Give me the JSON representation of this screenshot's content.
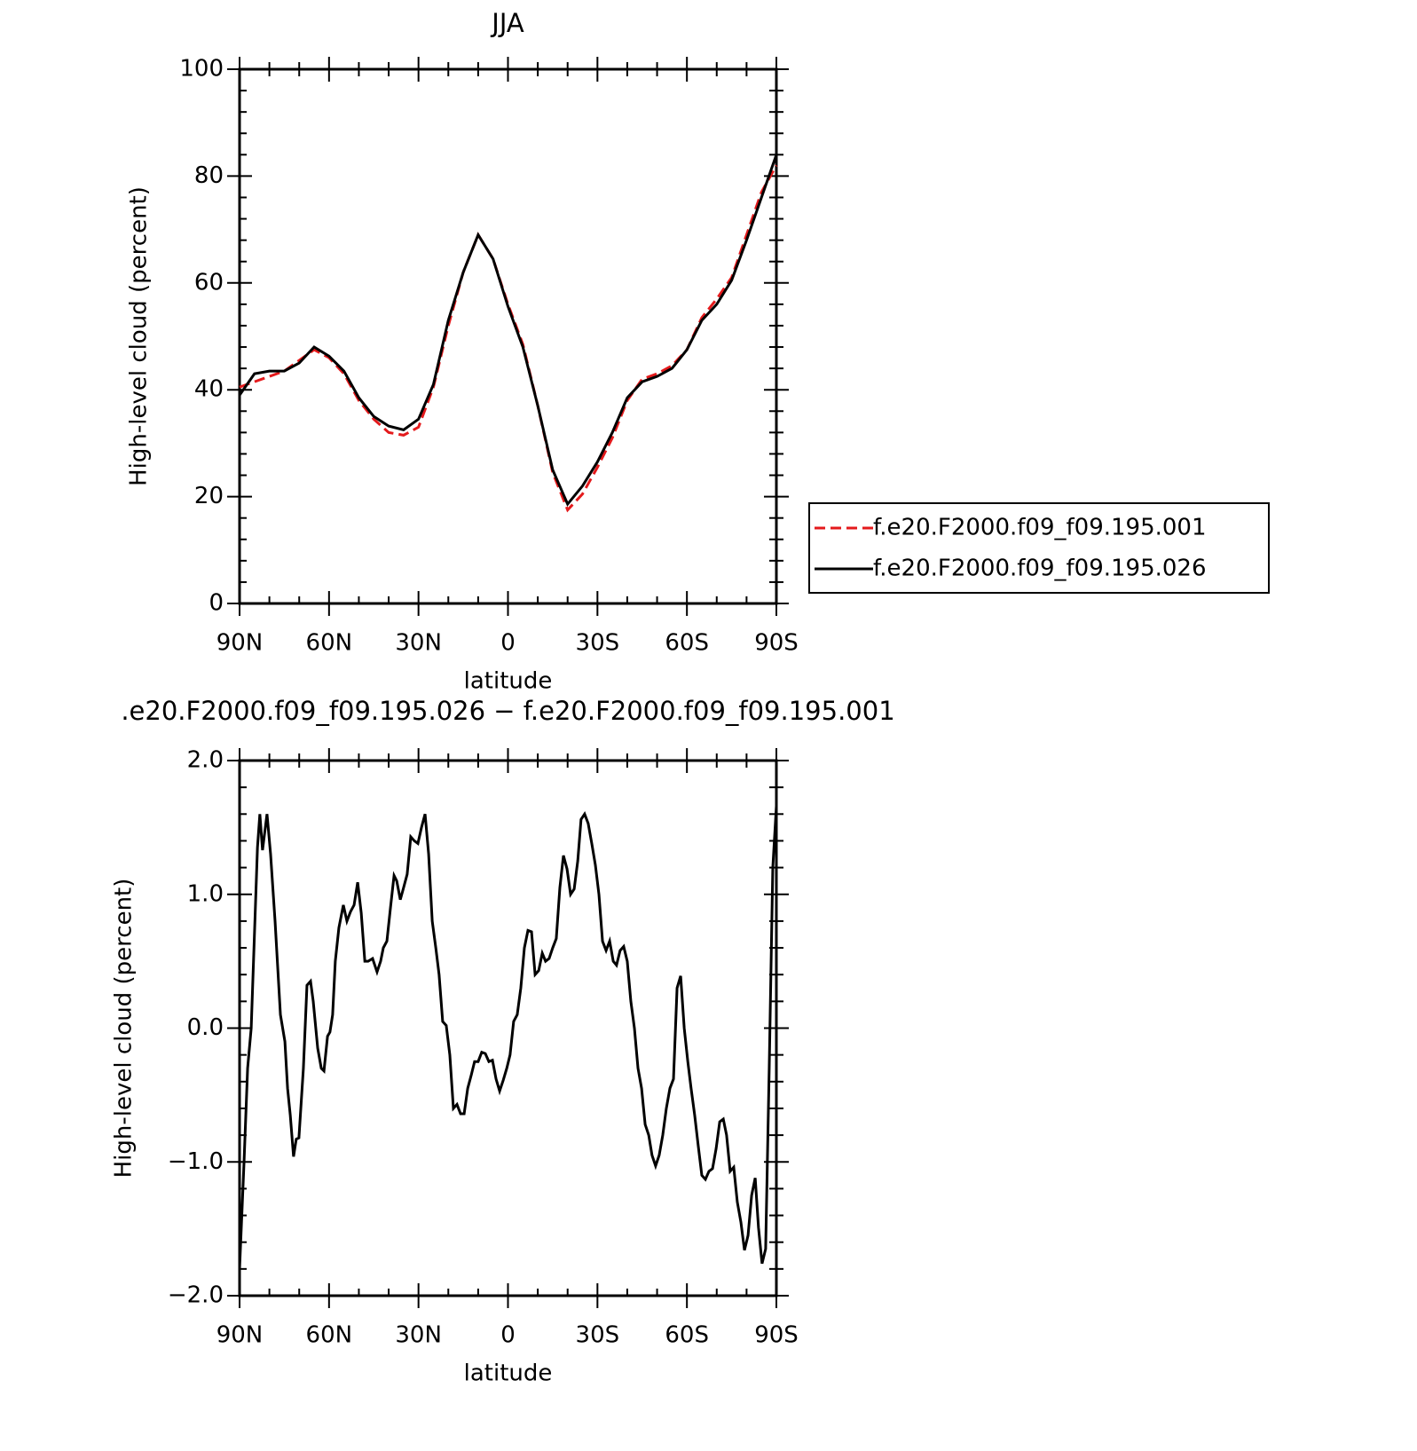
{
  "chart_data": [
    {
      "type": "line",
      "title": "JJA",
      "xlabel": "latitude",
      "ylabel": "High-level cloud (percent)",
      "x": [
        90,
        85,
        80,
        75,
        70,
        65,
        60,
        55,
        50,
        45,
        40,
        35,
        30,
        25,
        20,
        15,
        10,
        5,
        0,
        -5,
        -10,
        -15,
        -20,
        -25,
        -30,
        -35,
        -40,
        -45,
        -50,
        -55,
        -60,
        -65,
        -70,
        -75,
        -80,
        -85,
        -90
      ],
      "series": [
        {
          "name": "f.e20.F2000.f09_f09.195.001",
          "color": "#e41a1c",
          "style": "dashed",
          "values": [
            40.5,
            41.5,
            42.5,
            43.5,
            45.5,
            47.5,
            46,
            43,
            38,
            34.5,
            32,
            31.5,
            33,
            40.5,
            52,
            62,
            69,
            64.5,
            56,
            48.5,
            37,
            24.5,
            17.5,
            20.5,
            25.5,
            31,
            38,
            42,
            43,
            44.5,
            47.5,
            53.5,
            57,
            61,
            69,
            77,
            82
          ]
        },
        {
          "name": "f.e20.F2000.f09_f09.195.026",
          "color": "#000000",
          "style": "solid",
          "values": [
            39,
            43,
            43.5,
            43.5,
            45,
            48,
            46.3,
            43.5,
            38.5,
            35,
            33.2,
            32.5,
            34.5,
            41,
            53,
            62,
            69,
            64.5,
            55.6,
            48,
            37,
            25,
            18.6,
            22,
            26.5,
            32,
            38.5,
            41.5,
            42.5,
            44,
            47.5,
            53,
            56,
            60.5,
            68,
            76,
            84
          ]
        }
      ],
      "xlim": [
        90,
        -90
      ],
      "xticks": [
        {
          "value": 90,
          "label": "90N"
        },
        {
          "value": 60,
          "label": "60N"
        },
        {
          "value": 30,
          "label": "30N"
        },
        0,
        {
          "value": -30,
          "label": "30S"
        },
        {
          "value": -60,
          "label": "60S"
        },
        {
          "value": -90,
          "label": "90S"
        }
      ],
      "ylim": [
        0,
        100
      ],
      "yticks": [
        0,
        20,
        40,
        60,
        80,
        100
      ],
      "grid": false,
      "legend": "outside right"
    },
    {
      "type": "line",
      "title": ".e20.F2000.f09_f09.195.026 − f.e20.F2000.f09_f09.195.001",
      "xlabel": "latitude",
      "ylabel": "High-level cloud (percent)",
      "x": [
        90,
        88.5,
        87.3,
        86.1,
        84.0,
        83.2,
        82.3,
        80.8,
        79.6,
        78.1,
        76.3,
        74.8,
        73.9,
        73.0,
        71.9,
        71.0,
        70.1,
        68.6,
        67.4,
        66.2,
        65.3,
        63.8,
        62.6,
        61.7,
        60.5,
        59.7,
        58.8,
        57.9,
        56.7,
        55.2,
        54.0,
        52.8,
        51.6,
        50.4,
        49.2,
        48.0,
        46.9,
        45.4,
        43.9,
        42.7,
        41.8,
        40.6,
        39.4,
        38.2,
        37.3,
        36.1,
        35.0,
        33.8,
        32.6,
        31.4,
        30.2,
        29.0,
        27.8,
        26.6,
        25.4,
        24.2,
        23.1,
        21.9,
        20.7,
        19.5,
        18.3,
        17.1,
        15.9,
        14.7,
        13.5,
        12.3,
        11.2,
        10.0,
        8.8,
        7.6,
        6.4,
        5.2,
        4.0,
        2.8,
        1.6,
        0.4,
        -0.7,
        -1.9,
        -3.1,
        -4.3,
        -5.5,
        -6.7,
        -7.9,
        -9.1,
        -10.3,
        -11.5,
        -12.6,
        -13.8,
        -15.0,
        -16.2,
        -17.4,
        -18.6,
        -19.8,
        -21.0,
        -22.2,
        -23.4,
        -24.5,
        -25.7,
        -26.9,
        -28.1,
        -29.3,
        -30.5,
        -31.7,
        -32.9,
        -34.1,
        -35.3,
        -36.4,
        -37.6,
        -38.8,
        -40.0,
        -41.2,
        -42.4,
        -43.6,
        -44.8,
        -46.0,
        -47.2,
        -48.3,
        -49.5,
        -50.7,
        -51.9,
        -53.1,
        -54.3,
        -55.5,
        -56.7,
        -57.9,
        -59.1,
        -60.3,
        -61.4,
        -62.6,
        -63.8,
        -65.0,
        -66.2,
        -67.4,
        -68.6,
        -69.8,
        -71.0,
        -72.2,
        -73.3,
        -74.5,
        -75.7,
        -76.9,
        -78.1,
        -79.3,
        -80.5,
        -81.7,
        -82.9,
        -84.0,
        -85.2,
        -86.4,
        -87.6,
        -88.8,
        -90.0
      ],
      "series": [
        {
          "color": "#000000",
          "style": "solid",
          "values": [
            -1.8,
            -1.0,
            -0.3,
            0.0,
            1.35,
            1.6,
            1.33,
            1.6,
            1.3,
            0.8,
            0.1,
            -0.1,
            -0.45,
            -0.65,
            -0.96,
            -0.83,
            -0.82,
            -0.3,
            0.32,
            0.35,
            0.2,
            -0.15,
            -0.3,
            -0.32,
            -0.06,
            -0.03,
            0.1,
            0.5,
            0.75,
            0.92,
            0.8,
            0.87,
            0.92,
            1.09,
            0.86,
            0.5,
            0.5,
            0.52,
            0.42,
            0.5,
            0.6,
            0.65,
            0.9,
            1.14,
            1.1,
            0.96,
            1.05,
            1.15,
            1.43,
            1.4,
            1.38,
            1.5,
            1.6,
            1.3,
            0.8,
            0.6,
            0.4,
            0.05,
            0.02,
            -0.2,
            -0.6,
            -0.57,
            -0.64,
            -0.64,
            -0.45,
            -0.35,
            -0.25,
            -0.25,
            -0.18,
            -0.19,
            -0.25,
            -0.24,
            -0.38,
            -0.47,
            -0.39,
            -0.3,
            -0.2,
            0.05,
            0.1,
            0.3,
            0.6,
            0.73,
            0.72,
            0.4,
            0.43,
            0.56,
            0.5,
            0.52,
            0.6,
            0.67,
            1.05,
            1.29,
            1.19,
            1.0,
            1.04,
            1.25,
            1.56,
            1.6,
            1.53,
            1.38,
            1.22,
            1.0,
            0.65,
            0.58,
            0.65,
            0.5,
            0.47,
            0.58,
            0.61,
            0.5,
            0.2,
            0.0,
            -0.3,
            -0.45,
            -0.72,
            -0.8,
            -0.95,
            -1.03,
            -0.95,
            -0.8,
            -0.6,
            -0.45,
            -0.38,
            0.3,
            0.39,
            0.0,
            -0.25,
            -0.45,
            -0.65,
            -0.88,
            -1.1,
            -1.13,
            -1.07,
            -1.05,
            -0.9,
            -0.7,
            -0.68,
            -0.8,
            -1.07,
            -1.04,
            -1.3,
            -1.45,
            -1.66,
            -1.55,
            -1.25,
            -1.12,
            -1.49,
            -1.76,
            -1.65,
            -0.3,
            1.2,
            1.66
          ]
        }
      ],
      "xlim": [
        90,
        -90
      ],
      "xticks": [
        {
          "value": 90,
          "label": "90N"
        },
        {
          "value": 60,
          "label": "60N"
        },
        {
          "value": 30,
          "label": "30N"
        },
        0,
        {
          "value": -30,
          "label": "30S"
        },
        {
          "value": -60,
          "label": "60S"
        },
        {
          "value": -90,
          "label": "90S"
        }
      ],
      "ylim": [
        -2,
        2
      ],
      "yticks": [
        {
          "value": -2,
          "label": "−2.0"
        },
        {
          "value": -1,
          "label": "−1.0"
        },
        {
          "value": 0,
          "label": "0.0"
        },
        {
          "value": 1,
          "label": "1.0"
        },
        {
          "value": 2,
          "label": "2.0"
        }
      ],
      "grid": false
    }
  ]
}
